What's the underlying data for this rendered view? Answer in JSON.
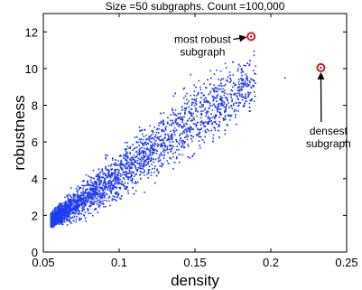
{
  "chart_data": {
    "type": "scatter",
    "title": "Size =50 subgraphs. Count =100,000",
    "xlabel": "density",
    "ylabel": "robustness",
    "xlim": [
      0.05,
      0.25
    ],
    "ylim": [
      0,
      13
    ],
    "xticks": [
      "0.05",
      "0.1",
      "0.15",
      "0.2",
      "0.25"
    ],
    "yticks": [
      "0",
      "2",
      "4",
      "6",
      "8",
      "10",
      "12"
    ],
    "xtick_values": [
      0.05,
      0.1,
      0.15,
      0.2,
      0.25
    ],
    "ytick_values": [
      0,
      2,
      4,
      6,
      8,
      10,
      12
    ],
    "point_color": "#1f3df2",
    "highlight_color": "#e8141c",
    "count": 100000,
    "cloud_trend": [
      {
        "x": 0.055,
        "y_low": 1.3,
        "y_high": 2.1
      },
      {
        "x": 0.07,
        "y_low": 1.7,
        "y_high": 3.4
      },
      {
        "x": 0.09,
        "y_low": 2.4,
        "y_high": 4.8
      },
      {
        "x": 0.11,
        "y_low": 3.3,
        "y_high": 6.4
      },
      {
        "x": 0.13,
        "y_low": 4.3,
        "y_high": 7.9
      },
      {
        "x": 0.15,
        "y_low": 5.3,
        "y_high": 9.3
      },
      {
        "x": 0.17,
        "y_low": 6.5,
        "y_high": 10.3
      },
      {
        "x": 0.19,
        "y_low": 7.6,
        "y_high": 10.8
      }
    ],
    "annotations": [
      {
        "label_lines": [
          "most robust",
          "subgraph"
        ],
        "x": 0.187,
        "y": 11.75,
        "label_x": 0.155,
        "label_y": 11.4
      },
      {
        "label_lines": [
          "densest",
          "subgraph"
        ],
        "x": 0.233,
        "y": 10.05,
        "label_x": 0.238,
        "label_y": 6.4
      }
    ]
  }
}
